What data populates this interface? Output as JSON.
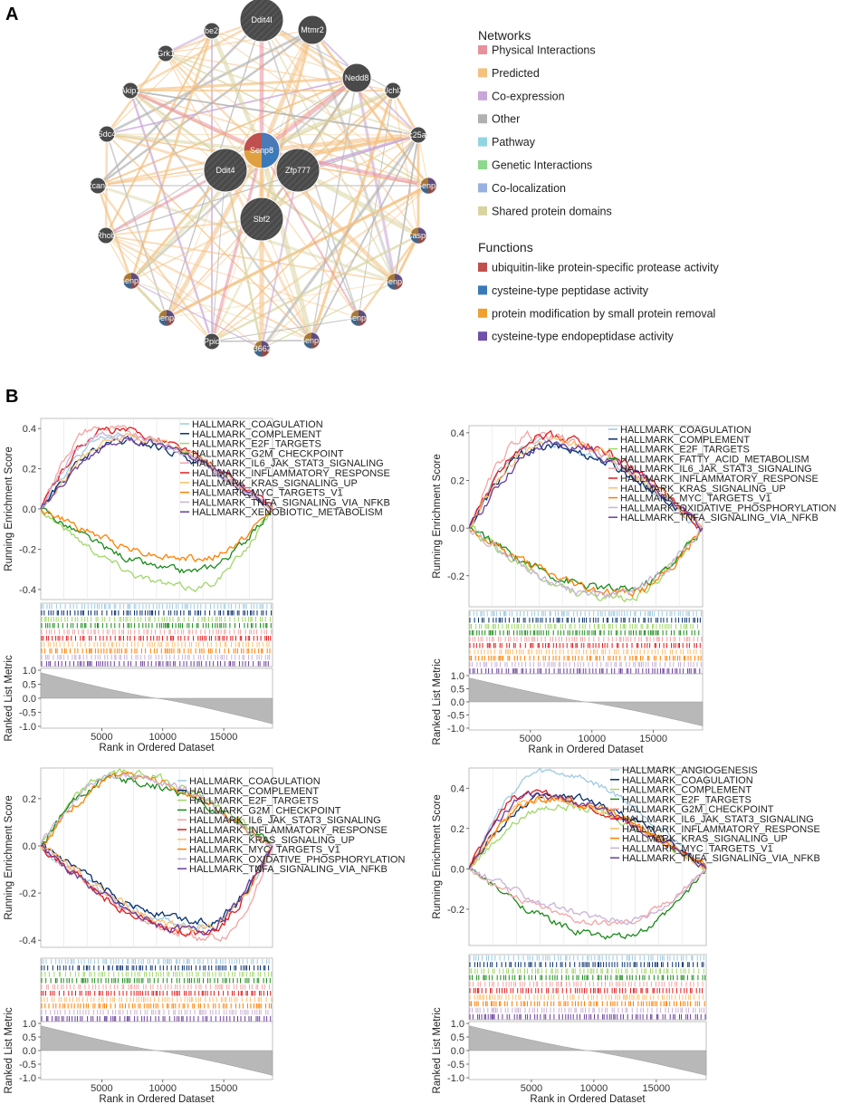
{
  "panel_a": {
    "letter": "A",
    "center_node": "Senp8",
    "network_nodes": [
      {
        "name": "Ddit4l",
        "kind": "big"
      },
      {
        "name": "Mtmr2",
        "kind": "med"
      },
      {
        "name": "Ube2m",
        "kind": "small"
      },
      {
        "name": "Nedd8",
        "kind": "med"
      },
      {
        "name": "Grk1",
        "kind": "small"
      },
      {
        "name": "Uchl3",
        "kind": "small"
      },
      {
        "name": "Akip1",
        "kind": "small"
      },
      {
        "name": "Slc25a20",
        "kind": "small"
      },
      {
        "name": "Sdc4",
        "kind": "small"
      },
      {
        "name": "Senp7",
        "kind": "small"
      },
      {
        "name": "Rcan1",
        "kind": "small"
      },
      {
        "name": "Casp6",
        "kind": "small"
      },
      {
        "name": "Rhob",
        "kind": "small"
      },
      {
        "name": "Senp5",
        "kind": "small"
      },
      {
        "name": "Senp2",
        "kind": "small"
      },
      {
        "name": "Senp6",
        "kind": "small"
      },
      {
        "name": "Senp3",
        "kind": "small"
      },
      {
        "name": "Senp1",
        "kind": "small"
      },
      {
        "name": "Ppid",
        "kind": "small"
      },
      {
        "name": "AF366264",
        "kind": "small"
      },
      {
        "name": "Ddit4",
        "kind": "big"
      },
      {
        "name": "Zfp777",
        "kind": "big"
      },
      {
        "name": "Sbf2",
        "kind": "big"
      }
    ],
    "networks_title": "Networks",
    "networks": [
      {
        "label": "Physical Interactions",
        "color": "#e8909c"
      },
      {
        "label": "Predicted",
        "color": "#f4c080"
      },
      {
        "label": "Co-expression",
        "color": "#c9a6d8"
      },
      {
        "label": "Other",
        "color": "#b0b0b0"
      },
      {
        "label": "Pathway",
        "color": "#90d6e0"
      },
      {
        "label": "Genetic Interactions",
        "color": "#8cd88c"
      },
      {
        "label": "Co-localization",
        "color": "#9ab0e0"
      },
      {
        "label": "Shared protein domains",
        "color": "#d8d4a0"
      }
    ],
    "functions_title": "Functions",
    "functions": [
      {
        "label": "ubiquitin-like protein-specific protease activity",
        "color": "#c0504d"
      },
      {
        "label": "cysteine-type peptidase activity",
        "color": "#3a7ab8"
      },
      {
        "label": "protein modification by small protein removal",
        "color": "#f0a030"
      },
      {
        "label": "cysteine-type endopeptidase activity",
        "color": "#7050a8"
      }
    ]
  },
  "panel_b": {
    "letter": "B",
    "chart_data": [
      {
        "type": "line",
        "title": "",
        "ylabel_top": "Running Enrichment Score",
        "ylabel_bottom": "Ranked List Metric",
        "xlabel": "Rank in Ordered Dataset",
        "xticks": [
          5000,
          10000,
          15000
        ],
        "xlim": [
          0,
          19000
        ],
        "ylim": [
          -0.45,
          0.45
        ],
        "yticks": [
          -0.4,
          -0.2,
          0.0,
          0.2,
          0.4
        ],
        "ytick_labels": [
          "-0.4",
          "-0.2",
          "0.0",
          "0.2",
          "0.4"
        ],
        "metric_ticks": [
          "1.0",
          "0.5",
          "0.0",
          "-0.5",
          "-1.0"
        ],
        "series": [
          {
            "name": "HALLMARK_COAGULATION",
            "color": "#9ecae1",
            "peak": 0.36,
            "peak_at": 6000
          },
          {
            "name": "HALLMARK_COMPLEMENT",
            "color": "#08306b",
            "peak": 0.33,
            "peak_at": 6500
          },
          {
            "name": "HALLMARK_E2F_TARGETS",
            "color": "#a1d76a",
            "peak": -0.39,
            "peak_at": 12500
          },
          {
            "name": "HALLMARK_G2M_CHECKPOINT",
            "color": "#1a8a1a",
            "peak": -0.31,
            "peak_at": 12300
          },
          {
            "name": "HALLMARK_IL6_JAK_STAT3_SIGNALING",
            "color": "#f4a4a4",
            "peak": 0.4,
            "peak_at": 4500
          },
          {
            "name": "HALLMARK_INFLAMMATORY_RESPONSE",
            "color": "#e31a1c",
            "peak": 0.39,
            "peak_at": 5500
          },
          {
            "name": "HALLMARK_KRAS_SIGNALING_UP",
            "color": "#fdbf6f",
            "peak": 0.36,
            "peak_at": 7000
          },
          {
            "name": "HALLMARK_MYC_TARGETS_V1",
            "color": "#ff7f00",
            "peak": -0.25,
            "peak_at": 13000
          },
          {
            "name": "HALLMARK_TNFA_SIGNALING_VIA_NFKB",
            "color": "#cab2d6",
            "peak": 0.37,
            "peak_at": 5000
          },
          {
            "name": "HALLMARK_XENOBIOTIC_METABOLISM",
            "color": "#6a3d9a",
            "peak": 0.34,
            "peak_at": 7500
          }
        ]
      },
      {
        "type": "line",
        "title": "",
        "ylabel_top": "Running Enrichment Score",
        "ylabel_bottom": "Ranked List Metric",
        "xlabel": "Rank in Ordered Dataset",
        "xticks": [
          5000,
          10000,
          15000
        ],
        "xlim": [
          0,
          19000
        ],
        "ylim": [
          -0.33,
          0.43
        ],
        "yticks": [
          -0.2,
          0.0,
          0.2,
          0.4
        ],
        "ytick_labels": [
          "-0.2",
          "0.0",
          "0.2",
          "0.4"
        ],
        "metric_ticks": [
          "1.0",
          "0.5",
          "0.0",
          "-0.5",
          "-1.0"
        ],
        "series": [
          {
            "name": "HALLMARK_COAGULATION",
            "color": "#9ecae1",
            "peak": 0.36,
            "peak_at": 5500
          },
          {
            "name": "HALLMARK_COMPLEMENT",
            "color": "#08306b",
            "peak": 0.34,
            "peak_at": 6000
          },
          {
            "name": "HALLMARK_E2F_TARGETS",
            "color": "#a1d76a",
            "peak": -0.3,
            "peak_at": 12000
          },
          {
            "name": "HALLMARK_FATTY_ACID_METABOLISM",
            "color": "#1a8a1a",
            "peak": -0.26,
            "peak_at": 12500
          },
          {
            "name": "HALLMARK_IL6_JAK_STAT3_SIGNALING",
            "color": "#f4a4a4",
            "peak": 0.39,
            "peak_at": 5000
          },
          {
            "name": "HALLMARK_INFLAMMATORY_RESPONSE",
            "color": "#e31a1c",
            "peak": 0.39,
            "peak_at": 6000
          },
          {
            "name": "HALLMARK_KRAS_SIGNALING_UP",
            "color": "#fdbf6f",
            "peak": 0.36,
            "peak_at": 6500
          },
          {
            "name": "HALLMARK_MYC_TARGETS_V1",
            "color": "#ff7f00",
            "peak": -0.27,
            "peak_at": 13000
          },
          {
            "name": "HALLMARK_OXIDATIVE_PHOSPHORYLATION",
            "color": "#cab2d6",
            "peak": -0.28,
            "peak_at": 11500
          },
          {
            "name": "HALLMARK_TNFA_SIGNALING_VIA_NFKB",
            "color": "#6a3d9a",
            "peak": 0.35,
            "peak_at": 7000
          }
        ]
      },
      {
        "type": "line",
        "title": "",
        "ylabel_top": "Running Enrichment Score",
        "ylabel_bottom": "Ranked List Metric",
        "xlabel": "Rank in Ordered Dataset",
        "xticks": [
          5000,
          10000,
          15000
        ],
        "xlim": [
          0,
          19000
        ],
        "ylim": [
          -0.43,
          0.33
        ],
        "yticks": [
          -0.4,
          -0.2,
          0.0,
          0.2
        ],
        "ytick_labels": [
          "-0.4",
          "-0.2",
          "0.0",
          "0.2"
        ],
        "metric_ticks": [
          "1.0",
          "0.5",
          "0.0",
          "-0.5",
          "-1.0"
        ],
        "series": [
          {
            "name": "HALLMARK_COAGULATION",
            "color": "#9ecae1",
            "peak": -0.34,
            "peak_at": 13000
          },
          {
            "name": "HALLMARK_COMPLEMENT",
            "color": "#08306b",
            "peak": -0.32,
            "peak_at": 13500
          },
          {
            "name": "HALLMARK_E2F_TARGETS",
            "color": "#a1d76a",
            "peak": 0.31,
            "peak_at": 6500
          },
          {
            "name": "HALLMARK_G2M_CHECKPOINT",
            "color": "#1a8a1a",
            "peak": 0.28,
            "peak_at": 6000
          },
          {
            "name": "HALLMARK_IL6_JAK_STAT3_SIGNALING",
            "color": "#f4a4a4",
            "peak": -0.39,
            "peak_at": 14500
          },
          {
            "name": "HALLMARK_INFLAMMATORY_RESPONSE",
            "color": "#e31a1c",
            "peak": -0.37,
            "peak_at": 13000
          },
          {
            "name": "HALLMARK_KRAS_SIGNALING_UP",
            "color": "#fdbf6f",
            "peak": -0.35,
            "peak_at": 13500
          },
          {
            "name": "HALLMARK_MYC_TARGETS_V1",
            "color": "#ff7f00",
            "peak": 0.29,
            "peak_at": 6800
          },
          {
            "name": "HALLMARK_OXIDATIVE_PHOSPHORYLATION",
            "color": "#cab2d6",
            "peak": 0.3,
            "peak_at": 6200
          },
          {
            "name": "HALLMARK_TNFA_SIGNALING_VIA_NFKB",
            "color": "#6a3d9a",
            "peak": -0.36,
            "peak_at": 12800
          }
        ]
      },
      {
        "type": "line",
        "title": "",
        "ylabel_top": "Running Enrichment Score",
        "ylabel_bottom": "Ranked List Metric",
        "xlabel": "Rank in Ordered Dataset",
        "xticks": [
          5000,
          10000,
          15000
        ],
        "xlim": [
          0,
          19000
        ],
        "ylim": [
          -0.38,
          0.5
        ],
        "yticks": [
          -0.2,
          0.0,
          0.2,
          0.4
        ],
        "ytick_labels": [
          "-0.2",
          "0.0",
          "0.2",
          "0.4"
        ],
        "metric_ticks": [
          "1.0",
          "0.5",
          "0.0",
          "-0.5",
          "-1.0"
        ],
        "series": [
          {
            "name": "HALLMARK_ANGIOGENESIS",
            "color": "#9ecae1",
            "peak": 0.48,
            "peak_at": 6000
          },
          {
            "name": "HALLMARK_COAGULATION",
            "color": "#08306b",
            "peak": 0.36,
            "peak_at": 6500
          },
          {
            "name": "HALLMARK_COMPLEMENT",
            "color": "#a1d76a",
            "peak": 0.31,
            "peak_at": 7000
          },
          {
            "name": "HALLMARK_E2F_TARGETS",
            "color": "#1a8a1a",
            "peak": -0.34,
            "peak_at": 12000
          },
          {
            "name": "HALLMARK_G2M_CHECKPOINT",
            "color": "#f4a4a4",
            "peak": -0.27,
            "peak_at": 11500
          },
          {
            "name": "HALLMARK_IL6_JAK_STAT3_SIGNALING",
            "color": "#e31a1c",
            "peak": 0.37,
            "peak_at": 4500
          },
          {
            "name": "HALLMARK_INFLAMMATORY_RESPONSE",
            "color": "#fdbf6f",
            "peak": 0.35,
            "peak_at": 5500
          },
          {
            "name": "HALLMARK_KRAS_SIGNALING_UP",
            "color": "#ff7f00",
            "peak": 0.35,
            "peak_at": 6000
          },
          {
            "name": "HALLMARK_MYC_TARGETS_V1",
            "color": "#cab2d6",
            "peak": -0.25,
            "peak_at": 12500
          },
          {
            "name": "HALLMARK_TNFA_SIGNALING_VIA_NFKB",
            "color": "#6a3d9a",
            "peak": 0.36,
            "peak_at": 5000
          }
        ]
      }
    ]
  }
}
